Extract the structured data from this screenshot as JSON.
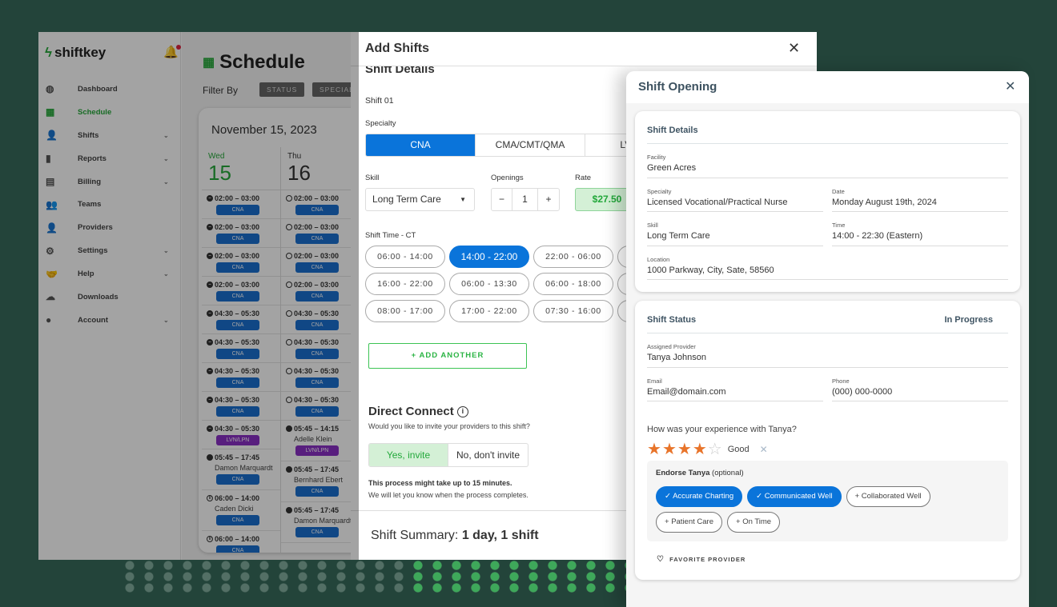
{
  "colors": {
    "brand_green": "#27a93b",
    "primary_blue": "#0a74da",
    "background": "#23443a",
    "star": "#e8742a"
  },
  "app": {
    "logo": "shiftkey",
    "sidebar": {
      "items": [
        {
          "label": "Dashboard",
          "icon": "dashboard-icon",
          "glyph": "◍"
        },
        {
          "label": "Schedule",
          "icon": "calendar-icon",
          "glyph": "▦",
          "active": true
        },
        {
          "label": "Shifts",
          "icon": "user-clock-icon",
          "glyph": "👤",
          "chevron": true
        },
        {
          "label": "Reports",
          "icon": "clipboard-icon",
          "glyph": "▮",
          "chevron": true
        },
        {
          "label": "Billing",
          "icon": "document-icon",
          "glyph": "▤",
          "chevron": true
        },
        {
          "label": "Teams",
          "icon": "team-icon",
          "glyph": "👥"
        },
        {
          "label": "Providers",
          "icon": "provider-icon",
          "glyph": "👤"
        },
        {
          "label": "Settings",
          "icon": "gears-icon",
          "glyph": "⚙",
          "chevron": true
        },
        {
          "label": "Help",
          "icon": "handshake-icon",
          "glyph": "🤝",
          "chevron": true
        },
        {
          "label": "Downloads",
          "icon": "cloud-download-icon",
          "glyph": "☁"
        },
        {
          "label": "Account",
          "icon": "account-icon",
          "glyph": "●",
          "chevron": true
        }
      ]
    },
    "schedule": {
      "title": "Schedule",
      "filter_label": "Filter By",
      "filters": [
        "STATUS",
        "SPECIALTY"
      ],
      "date": "November 15, 2023",
      "columns": [
        {
          "dow": "Wed",
          "day": "15",
          "today": true,
          "entries": [
            {
              "time": "02:00 – 03:00",
              "status": "minus-circle",
              "badge": "CNA"
            },
            {
              "time": "02:00 – 03:00",
              "status": "minus-circle",
              "badge": "CNA"
            },
            {
              "time": "02:00 – 03:00",
              "status": "minus-circle",
              "badge": "CNA"
            },
            {
              "time": "02:00 – 03:00",
              "status": "minus-circle",
              "badge": "CNA"
            },
            {
              "time": "04:30 – 05:30",
              "status": "minus-circle",
              "badge": "CNA"
            },
            {
              "time": "04:30 – 05:30",
              "status": "minus-circle",
              "badge": "CNA"
            },
            {
              "time": "04:30 – 05:30",
              "status": "minus-circle",
              "badge": "CNA"
            },
            {
              "time": "04:30 – 05:30",
              "status": "minus-circle",
              "badge": "CNA"
            },
            {
              "time": "04:30 – 05:30",
              "status": "minus-circle",
              "badge": "LVN/LPN"
            },
            {
              "time": "05:45 – 17:45",
              "status": "filled-circle",
              "name": "Damon Marquardt",
              "badge": "CNA"
            },
            {
              "time": "06:00 – 14:00",
              "status": "pause-circle",
              "name": "Caden Dicki",
              "badge": "CNA"
            },
            {
              "time": "06:00 – 14:00",
              "status": "pause-circle",
              "badge": "CNA"
            }
          ]
        },
        {
          "dow": "Thu",
          "day": "16",
          "entries": [
            {
              "time": "02:00 – 03:00",
              "status": "open-circle",
              "badge": "CNA"
            },
            {
              "time": "02:00 – 03:00",
              "status": "open-circle",
              "badge": "CNA"
            },
            {
              "time": "02:00 – 03:00",
              "status": "open-circle",
              "badge": "CNA"
            },
            {
              "time": "02:00 – 03:00",
              "status": "open-circle",
              "badge": "CNA"
            },
            {
              "time": "04:30 – 05:30",
              "status": "open-circle",
              "badge": "CNA"
            },
            {
              "time": "04:30 – 05:30",
              "status": "open-circle",
              "badge": "CNA"
            },
            {
              "time": "04:30 – 05:30",
              "status": "open-circle",
              "badge": "CNA"
            },
            {
              "time": "04:30 – 05:30",
              "status": "open-circle",
              "badge": "CNA"
            },
            {
              "time": "05:45 – 14:15",
              "status": "filled-circle",
              "name": "Adelle Klein",
              "badge": "LVN/LPN"
            },
            {
              "time": "05:45 – 17:45",
              "status": "filled-circle",
              "name": "Bernhard Ebert",
              "badge": "CNA"
            },
            {
              "time": "05:45 – 17:45",
              "status": "filled-circle",
              "name": "Damon Marquardt",
              "badge": "CNA"
            }
          ]
        }
      ]
    }
  },
  "add_shifts": {
    "title": "Add Shifts",
    "section": "Shift Details",
    "shift_label": "Shift 01",
    "specialty_label": "Specialty",
    "specialties": [
      "CNA",
      "CMA/CMT/QMA",
      "LVN/LPN"
    ],
    "specialty_selected": 0,
    "skill_label": "Skill",
    "skill_value": "Long Term Care",
    "openings_label": "Openings",
    "openings_value": "1",
    "minus": "−",
    "plus": "+",
    "rate_label": "Rate",
    "rate_value": "$27.50",
    "shift_time_label": "Shift Time - CT",
    "shift_times": [
      "06:00 - 14:00",
      "14:00 - 22:00",
      "22:00 - 06:00",
      "",
      "16:00 - 22:00",
      "06:00 - 13:30",
      "06:00 - 18:00",
      "",
      "08:00 - 17:00",
      "17:00 - 22:00",
      "07:30 - 16:00",
      ""
    ],
    "shift_time_selected": 1,
    "add_another": "+  ADD ANOTHER",
    "direct_connect": {
      "title": "Direct Connect",
      "subtitle": "Would you like to invite your providers to this shift?",
      "yes": "Yes, invite",
      "no": "No, don't invite",
      "note_bold": "This process might take up to 15 minutes.",
      "note": "We will let you know when the process completes."
    },
    "summary_label": "Shift Summary: ",
    "summary_value": "1 day,  1 shift"
  },
  "shift_opening": {
    "title": "Shift Opening",
    "details": {
      "title": "Shift Details",
      "facility_label": "Facility",
      "facility": "Green Acres",
      "specialty_label": "Specialty",
      "specialty": "Licensed Vocational/Practical Nurse",
      "date_label": "Date",
      "date": "Monday August 19th, 2024",
      "skill_label": "Skill",
      "skill": "Long Term Care",
      "time_label": "Time",
      "time": "14:00 - 22:30 (Eastern)",
      "location_label": "Location",
      "location": "1000 Parkway, City, Sate, 58560"
    },
    "status": {
      "title": "Shift Status",
      "value": "In Progress",
      "provider_label": "Assigned Provider",
      "provider": "Tanya Johnson",
      "email_label": "Email",
      "email": "Email@domain.com",
      "phone_label": "Phone",
      "phone": "(000) 000-0000",
      "question": "How was your experience with Tanya?",
      "rating": 4,
      "rating_max": 5,
      "rating_label": "Good",
      "endorse_title": "Endorse Tanya",
      "endorse_optional": "(optional)",
      "endorsements": [
        {
          "label": "Accurate Charting",
          "selected": true
        },
        {
          "label": "Communicated Well",
          "selected": true
        },
        {
          "label": "Collaborated Well",
          "selected": false
        },
        {
          "label": "Patient Care",
          "selected": false
        },
        {
          "label": "On Time",
          "selected": false
        }
      ],
      "favorite": "FAVORITE PROVIDER"
    }
  }
}
